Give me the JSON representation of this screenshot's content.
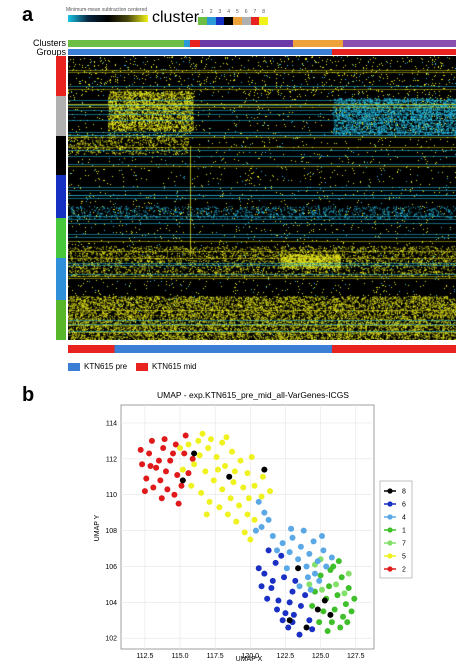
{
  "panel_a": {
    "letter": "a",
    "colorbar_label": "Minimum-mean subtraction centered",
    "cluster_title": "cluster",
    "cluster_ticks": [
      "1",
      "2",
      "3",
      "4",
      "5",
      "6",
      "7",
      "8"
    ],
    "row_labels": [
      "Clusters",
      "Groups"
    ],
    "group_legend": [
      {
        "label": "KTN615 pre",
        "color": "#3a7fd5"
      },
      {
        "label": "KTN615 mid",
        "color": "#e8221f"
      }
    ],
    "cluster_bar_colors": [
      "#6dbe45",
      "#2b9ad6",
      "#e8221f",
      "#6b3aa8",
      "#f0a23a",
      "#8a4fb0"
    ],
    "group_side_colors": [
      "#e8221f",
      "#b0b0b0",
      "#000000",
      "#1730c4",
      "#47c73b",
      "#2f8fd8",
      "#58b62a"
    ]
  },
  "panel_b": {
    "letter": "b",
    "chart_data": {
      "type": "scatter",
      "title": "UMAP - exp.KTN615_pre_mid_all-VarGenes-ICGS",
      "xlabel": "UMAP X",
      "ylabel": "UMAP Y",
      "xlim": [
        110.8,
        128.8
      ],
      "ylim": [
        101.4,
        115.0
      ],
      "xticks": [
        "112.5",
        "115.0",
        "117.5",
        "120.0",
        "122.5",
        "125.0",
        "127.5"
      ],
      "yticks": [
        "102",
        "104",
        "106",
        "108",
        "110",
        "112",
        "114"
      ],
      "legend_position": "right",
      "series": [
        {
          "name": "8",
          "color": "#000000",
          "points": [
            [
              116.0,
              112.3
            ],
            [
              118.5,
              111.0
            ],
            [
              121.0,
              111.4
            ],
            [
              115.2,
              110.8
            ],
            [
              124.8,
              103.6
            ],
            [
              125.3,
              104.1
            ],
            [
              122.8,
              103.0
            ],
            [
              124.0,
              102.6
            ],
            [
              123.4,
              105.9
            ],
            [
              125.7,
              103.3
            ]
          ]
        },
        {
          "name": "6",
          "color": "#1a2fc4",
          "points": [
            [
              121.0,
              105.6
            ],
            [
              121.5,
              104.8
            ],
            [
              122.0,
              104.1
            ],
            [
              122.5,
              103.4
            ],
            [
              123.0,
              102.9
            ],
            [
              121.8,
              106.2
            ],
            [
              122.4,
              105.4
            ],
            [
              123.0,
              104.6
            ],
            [
              123.6,
              103.8
            ],
            [
              124.2,
              103.0
            ],
            [
              122.2,
              106.6
            ],
            [
              123.2,
              105.2
            ],
            [
              121.3,
              106.9
            ],
            [
              120.8,
              104.9
            ],
            [
              121.9,
              103.6
            ],
            [
              122.8,
              104.0
            ],
            [
              123.9,
              104.4
            ],
            [
              124.4,
              102.5
            ],
            [
              123.5,
              102.2
            ],
            [
              122.7,
              102.6
            ],
            [
              121.6,
              105.2
            ],
            [
              120.6,
              105.9
            ],
            [
              121.2,
              104.2
            ],
            [
              122.3,
              103.0
            ],
            [
              123.1,
              103.3
            ]
          ]
        },
        {
          "name": "4",
          "color": "#5aa8e6",
          "points": [
            [
              122.3,
              107.3
            ],
            [
              123.0,
              107.6
            ],
            [
              123.6,
              107.1
            ],
            [
              124.2,
              106.7
            ],
            [
              124.8,
              106.3
            ],
            [
              122.8,
              106.8
            ],
            [
              123.4,
              106.4
            ],
            [
              124.0,
              106.0
            ],
            [
              124.6,
              105.6
            ],
            [
              125.2,
              106.9
            ],
            [
              121.6,
              107.7
            ],
            [
              122.9,
              108.1
            ],
            [
              123.8,
              108.0
            ],
            [
              124.5,
              107.4
            ],
            [
              125.4,
              106.0
            ],
            [
              121.3,
              108.6
            ],
            [
              120.8,
              108.2
            ],
            [
              121.9,
              106.9
            ],
            [
              124.9,
              105.2
            ],
            [
              123.5,
              104.9
            ],
            [
              124.3,
              104.7
            ],
            [
              122.6,
              105.9
            ],
            [
              125.8,
              106.5
            ],
            [
              125.1,
              107.7
            ],
            [
              121.0,
              109.0
            ],
            [
              120.6,
              109.6
            ],
            [
              120.4,
              108.0
            ],
            [
              124.1,
              105.4
            ]
          ]
        },
        {
          "name": "1",
          "color": "#3fbf2a",
          "points": [
            [
              125.0,
              105.5
            ],
            [
              125.6,
              104.9
            ],
            [
              126.2,
              104.4
            ],
            [
              126.8,
              103.9
            ],
            [
              125.4,
              104.2
            ],
            [
              126.0,
              103.6
            ],
            [
              126.6,
              103.2
            ],
            [
              124.6,
              104.6
            ],
            [
              125.2,
              103.5
            ],
            [
              125.8,
              102.9
            ],
            [
              126.4,
              102.6
            ],
            [
              127.0,
              104.8
            ],
            [
              126.5,
              105.4
            ],
            [
              125.9,
              106.0
            ],
            [
              127.2,
              103.5
            ],
            [
              124.4,
              103.8
            ],
            [
              125.5,
              102.4
            ],
            [
              126.9,
              102.9
            ],
            [
              125.7,
              105.8
            ],
            [
              126.3,
              106.3
            ],
            [
              124.9,
              102.9
            ],
            [
              127.4,
              104.2
            ]
          ]
        },
        {
          "name": "7",
          "color": "#83e06a",
          "points": [
            [
              124.2,
              105.0
            ],
            [
              125.1,
              104.7
            ],
            [
              126.1,
              105.0
            ],
            [
              125.0,
              106.4
            ],
            [
              127.0,
              105.6
            ],
            [
              126.7,
              104.5
            ],
            [
              124.6,
              106.1
            ]
          ]
        },
        {
          "name": "5",
          "color": "#eff21e",
          "points": [
            [
              115.6,
              112.8
            ],
            [
              116.3,
              113.0
            ],
            [
              117.0,
              112.6
            ],
            [
              117.6,
              112.1
            ],
            [
              118.2,
              111.6
            ],
            [
              116.0,
              111.7
            ],
            [
              116.8,
              111.3
            ],
            [
              117.4,
              110.8
            ],
            [
              118.0,
              110.3
            ],
            [
              118.6,
              109.8
            ],
            [
              119.2,
              109.4
            ],
            [
              119.8,
              108.9
            ],
            [
              120.3,
              108.6
            ],
            [
              117.2,
              113.1
            ],
            [
              118.0,
              112.9
            ],
            [
              118.7,
              112.4
            ],
            [
              119.3,
              111.9
            ],
            [
              119.8,
              111.2
            ],
            [
              120.3,
              110.5
            ],
            [
              120.8,
              109.9
            ],
            [
              115.2,
              111.4
            ],
            [
              115.8,
              110.5
            ],
            [
              116.5,
              110.1
            ],
            [
              117.1,
              109.6
            ],
            [
              117.8,
              109.3
            ],
            [
              118.4,
              108.9
            ],
            [
              119.0,
              108.5
            ],
            [
              116.6,
              113.4
            ],
            [
              119.5,
              110.4
            ],
            [
              118.8,
              110.7
            ],
            [
              117.7,
              111.4
            ],
            [
              116.4,
              112.2
            ],
            [
              120.9,
              111.0
            ],
            [
              121.4,
              110.2
            ],
            [
              115.0,
              112.6
            ],
            [
              119.9,
              109.8
            ],
            [
              118.3,
              113.2
            ],
            [
              120.1,
              112.1
            ],
            [
              116.9,
              108.9
            ],
            [
              119.6,
              107.9
            ],
            [
              120.0,
              107.5
            ],
            [
              118.9,
              111.3
            ]
          ]
        },
        {
          "name": "2",
          "color": "#e01a1a",
          "points": [
            [
              112.3,
              111.7
            ],
            [
              112.8,
              112.3
            ],
            [
              113.3,
              111.5
            ],
            [
              113.8,
              112.6
            ],
            [
              114.3,
              111.9
            ],
            [
              114.8,
              111.1
            ],
            [
              115.3,
              112.3
            ],
            [
              112.6,
              110.9
            ],
            [
              113.1,
              110.4
            ],
            [
              113.6,
              110.8
            ],
            [
              114.1,
              110.3
            ],
            [
              114.6,
              110.0
            ],
            [
              115.1,
              110.5
            ],
            [
              115.6,
              111.2
            ],
            [
              112.2,
              112.5
            ],
            [
              113.0,
              113.0
            ],
            [
              113.9,
              113.1
            ],
            [
              114.7,
              112.8
            ],
            [
              115.4,
              113.3
            ],
            [
              113.5,
              111.9
            ],
            [
              114.0,
              111.3
            ],
            [
              114.5,
              112.3
            ],
            [
              112.9,
              111.6
            ],
            [
              115.9,
              112.0
            ],
            [
              113.7,
              109.8
            ],
            [
              114.9,
              109.5
            ],
            [
              112.5,
              110.2
            ]
          ]
        }
      ]
    }
  }
}
